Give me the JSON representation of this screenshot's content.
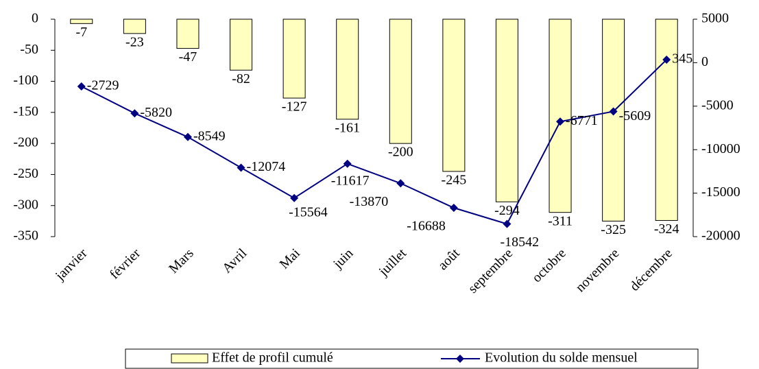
{
  "chart_data": {
    "type": "bar",
    "categories": [
      "janvier",
      "février",
      "Mars",
      "Avril",
      "Mai",
      "juin",
      "juillet",
      "août",
      "septembre",
      "octobre",
      "novembre",
      "décembre"
    ],
    "series": [
      {
        "name": "Effet de profil cumulé",
        "color": "#ffffc0",
        "values": [
          -7,
          -23,
          -47,
          -82,
          -127,
          -161,
          -200,
          -245,
          -294,
          -311,
          -325,
          -324
        ]
      },
      {
        "name": "Evolution du solde mensuel",
        "type": "line",
        "axis": "y2",
        "color": "#000080",
        "values": [
          -2729,
          -5820,
          -8549,
          -12074,
          -15564,
          -11617,
          -13870,
          -16688,
          -18542,
          -6771,
          -5609,
          345
        ]
      }
    ],
    "ylim": [
      -350,
      0
    ],
    "yticks": [
      0,
      -50,
      -100,
      -150,
      -200,
      -250,
      -300,
      -350
    ],
    "y2lim": [
      -20000,
      5000
    ],
    "y2ticks": [
      5000,
      0,
      -5000,
      -10000,
      -15000,
      -20000
    ],
    "legend": "bottom"
  }
}
